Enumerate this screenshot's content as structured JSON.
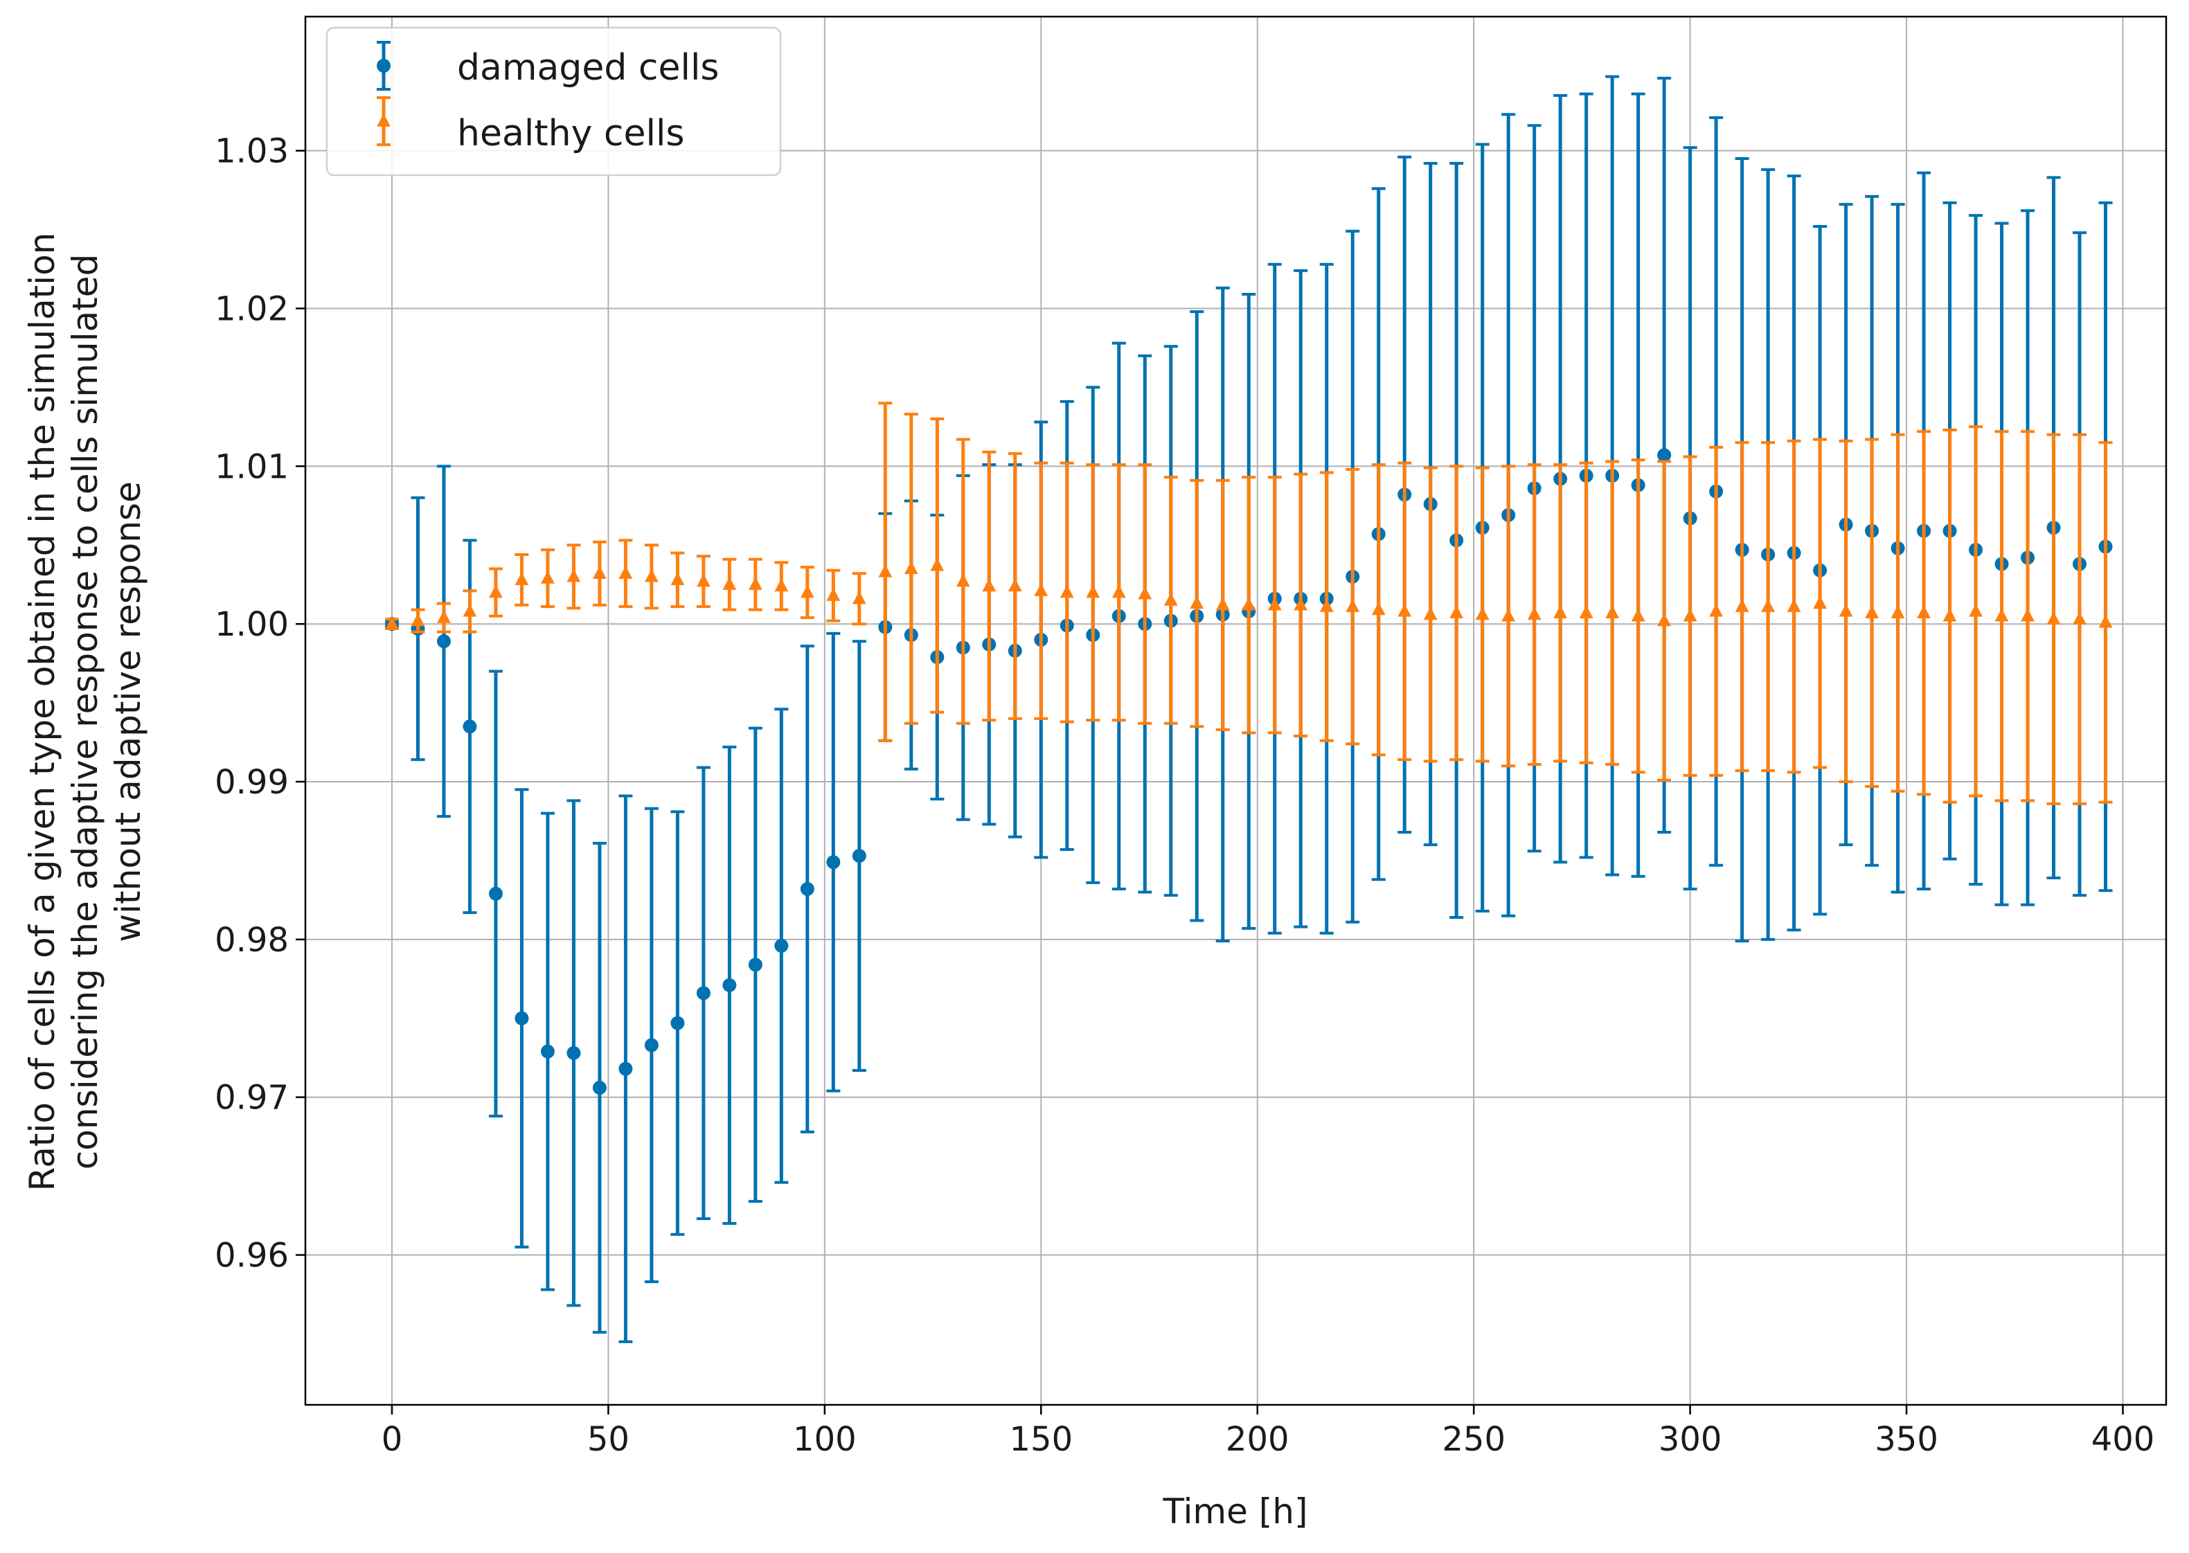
{
  "chart_data": {
    "type": "scatter",
    "subtype": "errorbar",
    "title": "",
    "xlabel": "Time [h]",
    "ylabel_lines": [
      "Ratio of cells of a given type obtained in the simulation",
      "considering the adaptive response to cells simulated",
      "without adaptive response"
    ],
    "xlim": [
      -20,
      410
    ],
    "ylim": [
      0.9505,
      1.0385
    ],
    "xticks": [
      0,
      50,
      100,
      150,
      200,
      250,
      300,
      350,
      400
    ],
    "yticks": [
      0.96,
      0.97,
      0.98,
      0.99,
      1.0,
      1.01,
      1.02,
      1.03
    ],
    "ytick_labels": [
      "0.96",
      "0.97",
      "0.98",
      "0.99",
      "1.00",
      "1.01",
      "1.02",
      "1.03"
    ],
    "grid": true,
    "legend_position": "top-left",
    "series": [
      {
        "name": "damaged cells",
        "color": "#0072b2",
        "marker": "circle",
        "x": [
          0,
          6,
          12,
          18,
          24,
          30,
          36,
          42,
          48,
          54,
          60,
          66,
          72,
          78,
          84,
          90,
          96,
          102,
          108,
          114,
          120,
          126,
          132,
          138,
          144,
          150,
          156,
          162,
          168,
          174,
          180,
          186,
          192,
          198,
          204,
          210,
          216,
          222,
          228,
          234,
          240,
          246,
          252,
          258,
          264,
          270,
          276,
          282,
          288,
          294,
          300,
          306,
          312,
          318,
          324,
          330,
          336,
          342,
          348,
          354,
          360,
          366,
          372,
          378,
          384,
          390,
          396
        ],
        "y": [
          1.0,
          0.9997,
          0.9989,
          0.9935,
          0.9829,
          0.975,
          0.9729,
          0.9728,
          0.9706,
          0.9718,
          0.9733,
          0.9747,
          0.9766,
          0.9771,
          0.9784,
          0.9796,
          0.9832,
          0.9849,
          0.9853,
          0.9998,
          0.9993,
          0.9979,
          0.9985,
          0.9987,
          0.9983,
          0.999,
          0.9999,
          0.9993,
          1.0005,
          1.0,
          1.0002,
          1.0005,
          1.0006,
          1.0008,
          1.0016,
          1.0016,
          1.0016,
          1.003,
          1.0057,
          1.0082,
          1.0076,
          1.0053,
          1.0061,
          1.0069,
          1.0086,
          1.0092,
          1.0094,
          1.0094,
          1.0088,
          1.0107,
          1.0067,
          1.0084,
          1.0047,
          1.0044,
          1.0045,
          1.0034,
          1.0063,
          1.0059,
          1.0048,
          1.0059,
          1.0059,
          1.0047,
          1.0038,
          1.0042,
          1.0061,
          1.0038,
          1.0049
        ],
        "err": [
          0.0002,
          0.0083,
          0.0111,
          0.0118,
          0.0141,
          0.0145,
          0.0151,
          0.016,
          0.0155,
          0.0173,
          0.015,
          0.0134,
          0.0143,
          0.0151,
          0.015,
          0.015,
          0.0154,
          0.0145,
          0.0136,
          0.0072,
          0.0085,
          0.009,
          0.0109,
          0.0114,
          0.0118,
          0.0138,
          0.0142,
          0.0157,
          0.0173,
          0.017,
          0.0174,
          0.0193,
          0.0207,
          0.0201,
          0.0212,
          0.0208,
          0.0212,
          0.0219,
          0.0219,
          0.0214,
          0.0216,
          0.0239,
          0.0243,
          0.0254,
          0.023,
          0.0243,
          0.0242,
          0.0253,
          0.0248,
          0.0239,
          0.0235,
          0.0237,
          0.0248,
          0.0244,
          0.0239,
          0.0218,
          0.0203,
          0.0212,
          0.0218,
          0.0227,
          0.0208,
          0.0212,
          0.0216,
          0.022,
          0.0222,
          0.021,
          0.0218
        ]
      },
      {
        "name": "healthy cells",
        "color": "#ff7f0e",
        "marker": "triangle",
        "x": [
          0,
          6,
          12,
          18,
          24,
          30,
          36,
          42,
          48,
          54,
          60,
          66,
          72,
          78,
          84,
          90,
          96,
          102,
          108,
          114,
          120,
          126,
          132,
          138,
          144,
          150,
          156,
          162,
          168,
          174,
          180,
          186,
          192,
          198,
          204,
          210,
          216,
          222,
          228,
          234,
          240,
          246,
          252,
          258,
          264,
          270,
          276,
          282,
          288,
          294,
          300,
          306,
          312,
          318,
          324,
          330,
          336,
          342,
          348,
          354,
          360,
          366,
          372,
          378,
          384,
          390,
          396
        ],
        "y": [
          1.0,
          1.0002,
          1.0004,
          1.0008,
          1.002,
          1.0028,
          1.0029,
          1.003,
          1.0032,
          1.0032,
          1.003,
          1.0028,
          1.0027,
          1.0025,
          1.0025,
          1.0024,
          1.002,
          1.0018,
          1.0016,
          1.0033,
          1.0035,
          1.0037,
          1.0027,
          1.0024,
          1.0024,
          1.0021,
          1.002,
          1.002,
          1.002,
          1.0019,
          1.0015,
          1.0013,
          1.0012,
          1.0012,
          1.0012,
          1.0012,
          1.0011,
          1.0011,
          1.0009,
          1.0008,
          1.0006,
          1.0007,
          1.0006,
          1.0005,
          1.0006,
          1.0007,
          1.0007,
          1.0007,
          1.0005,
          1.0002,
          1.0005,
          1.0008,
          1.0011,
          1.0011,
          1.0011,
          1.0013,
          1.0008,
          1.0007,
          1.0007,
          1.0007,
          1.0005,
          1.0008,
          1.0005,
          1.0005,
          1.0003,
          1.0003,
          1.0001
        ],
        "err": [
          0.0003,
          0.0007,
          0.0009,
          0.0013,
          0.0015,
          0.0016,
          0.0018,
          0.002,
          0.002,
          0.0021,
          0.002,
          0.0017,
          0.0016,
          0.0016,
          0.0016,
          0.0015,
          0.0016,
          0.0016,
          0.0016,
          0.0107,
          0.0098,
          0.0093,
          0.009,
          0.0085,
          0.0084,
          0.0081,
          0.0082,
          0.0081,
          0.0081,
          0.0082,
          0.0078,
          0.0078,
          0.0079,
          0.0081,
          0.0081,
          0.0083,
          0.0085,
          0.0087,
          0.0092,
          0.0094,
          0.0093,
          0.0093,
          0.0093,
          0.0095,
          0.0095,
          0.0094,
          0.0095,
          0.0096,
          0.0099,
          0.0101,
          0.0101,
          0.0104,
          0.0104,
          0.0104,
          0.0105,
          0.0104,
          0.0108,
          0.011,
          0.0113,
          0.0115,
          0.0118,
          0.0117,
          0.0117,
          0.0117,
          0.0117,
          0.0117,
          0.0114
        ]
      }
    ]
  }
}
